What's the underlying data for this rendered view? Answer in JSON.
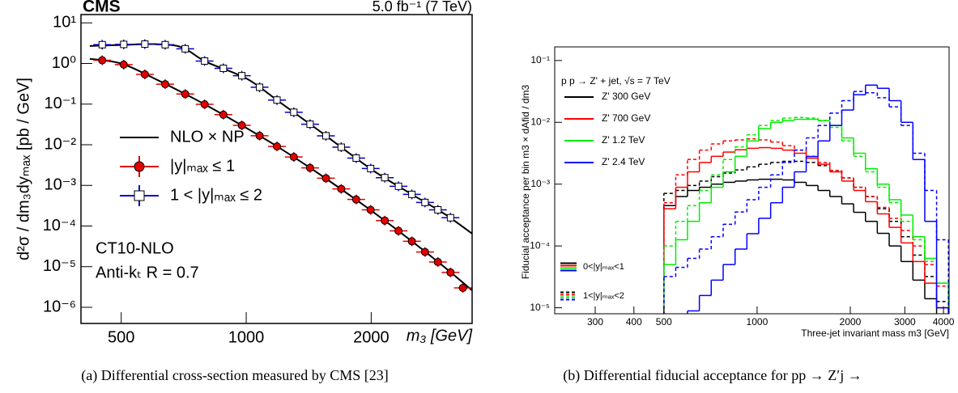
{
  "chart_data": [
    {
      "type": "scatter",
      "title": "CMS",
      "subtitle": "5.0 fb⁻¹ (7 TeV)",
      "x_label": "m₃ [GeV]",
      "y_label": "d²σ / dm₃dyₘₐₓ [pb / GeV]",
      "annotations": [
        "CT10-NLO",
        "Anti-kₜ R = 0.7"
      ],
      "xlog": true,
      "ylog": true,
      "xlim": [
        400,
        3500
      ],
      "xticks": [
        500,
        1000,
        2000
      ],
      "ylim": [
        4e-07,
        16
      ],
      "yticks": [
        {
          "value": 10,
          "label": "10¹"
        },
        {
          "value": 1,
          "label": "10⁰"
        },
        {
          "value": 0.1,
          "label": "10⁻¹"
        },
        {
          "value": 0.01,
          "label": "10⁻²"
        },
        {
          "value": 0.001,
          "label": "10⁻³"
        },
        {
          "value": 0.0001,
          "label": "10⁻⁴"
        },
        {
          "value": 1e-05,
          "label": "10⁻⁵"
        },
        {
          "value": 1e-06,
          "label": "10⁻⁶"
        }
      ],
      "curves": {
        "name": "NLO × NP",
        "color": "#000000",
        "x": [
          420,
          500,
          600,
          700,
          800,
          1000,
          1200,
          1500,
          2000,
          2500,
          3000,
          3500
        ],
        "values": [
          [
            1.3,
            1.0,
            0.43,
            0.195,
            0.095,
            0.026,
            0.0085,
            0.0019,
            0.00024,
            4.3e-05,
            9.8e-06,
            2.6e-06
          ],
          [
            2.7,
            2.85,
            3.0,
            2.5,
            1.1,
            0.43,
            0.115,
            0.022,
            0.0025,
            0.00061,
            0.0002,
            6.5e-05
          ]
        ]
      },
      "series": [
        {
          "name": "|y|ₘₐₓ ≤ 1",
          "color": "#e00000",
          "marker": "circle",
          "x": [
            450,
            507,
            570,
            638,
            713,
            794,
            881,
            976,
            1077,
            1186,
            1302,
            1425,
            1556,
            1694,
            1840,
            1994,
            2156,
            2327,
            2506,
            2695,
            2895,
            3105,
            3325
          ],
          "values": [
            1.2,
            0.94,
            0.54,
            0.31,
            0.177,
            0.099,
            0.055,
            0.03,
            0.0167,
            0.0091,
            0.005,
            0.0027,
            0.0015,
            0.00082,
            0.00045,
            0.00025,
            0.000136,
            7.6e-05,
            4.2e-05,
            2.3e-05,
            1.3e-05,
            7.2e-06,
            3e-06
          ]
        },
        {
          "name": "1 < |y|ₘₐₓ ≤ 2",
          "color": "#0000cc",
          "marker": "square",
          "x": [
            450,
            507,
            570,
            638,
            713,
            794,
            881,
            976,
            1077,
            1186,
            1302,
            1425,
            1556,
            1694,
            1840,
            1994,
            2156,
            2327,
            2506,
            2695,
            2895,
            3105
          ],
          "values": [
            2.9,
            2.95,
            3.0,
            2.9,
            2.3,
            1.15,
            0.76,
            0.5,
            0.26,
            0.126,
            0.063,
            0.032,
            0.0166,
            0.0087,
            0.0047,
            0.0026,
            0.00155,
            0.00095,
            0.0006,
            0.00038,
            0.00025,
            0.00016
          ]
        }
      ]
    },
    {
      "type": "histogram",
      "title": "p p → Z' + jet, √s = 7 TeV",
      "x_label": "Three-jet invariant mass m3 [GeV]",
      "y_label": "Fiducial acceptance per bin m3 × dAfid / dm3",
      "xlog": true,
      "ylog": true,
      "xlim": [
        222,
        4170
      ],
      "xticks": [
        300,
        400,
        500,
        1000,
        2000,
        3000,
        4000
      ],
      "ylim": [
        8e-06,
        0.166
      ],
      "yticks": [
        {
          "value": 0.1,
          "label": "10⁻¹"
        },
        {
          "value": 0.01,
          "label": "10⁻²"
        },
        {
          "value": 0.001,
          "label": "10⁻³"
        },
        {
          "value": 0.0001,
          "label": "10⁻⁴"
        },
        {
          "value": 1e-05,
          "label": "10⁻⁵"
        }
      ],
      "regions": [
        "0<|y|ₘₐₓ<1",
        "1<|y|ₘₐₓ<2"
      ],
      "line_styles": [
        "solid",
        "dashed"
      ],
      "bins": [
        500,
        546,
        596,
        651,
        711,
        777,
        849,
        927,
        1012,
        1106,
        1208,
        1319,
        1441,
        1573,
        1718,
        1877,
        2050,
        2239,
        2445,
        2671,
        2917,
        3186,
        3480,
        3800,
        4150
      ],
      "series": [
        {
          "name": "Z' 300 GeV",
          "color": "#000000",
          "values": [
            [
              0.00045,
              0.00063,
              0.00079,
              0.00089,
              0.001,
              0.00107,
              0.00112,
              0.00117,
              0.0012,
              0.0012,
              0.00117,
              0.00107,
              0.00095,
              0.00079,
              0.00063,
              0.00048,
              0.00035,
              0.00025,
              0.00016,
              0.0001,
              5.6e-05,
              2.8e-05,
              1.4e-05,
              7.9e-06
            ],
            [
              0.00071,
              0.00079,
              0.00095,
              0.00112,
              0.00132,
              0.00151,
              0.0017,
              0.0019,
              0.0021,
              0.00224,
              0.00234,
              0.00234,
              0.00224,
              0.002,
              0.00166,
              0.00126,
              0.00089,
              0.00063,
              0.0004,
              0.00025,
              0.000141,
              7.1e-05,
              3.2e-05,
              1.26e-05
            ]
          ]
        },
        {
          "name": "Z' 700 GeV",
          "color": "#ff0000",
          "values": [
            [
              0.0004,
              0.00089,
              0.00158,
              0.00224,
              0.00282,
              0.0033,
              0.0036,
              0.0038,
              0.0039,
              0.0038,
              0.00355,
              0.00316,
              0.00263,
              0.0021,
              0.00158,
              0.00112,
              0.00079,
              0.00052,
              0.00033,
              0.0002,
              0.000112,
              5.6e-05,
              2.5e-05,
              1e-05
            ],
            [
              0.0005,
              0.00141,
              0.00251,
              0.00355,
              0.00447,
              0.005,
              0.0052,
              0.0054,
              0.0052,
              0.0048,
              0.0042,
              0.00355,
              0.00282,
              0.00224,
              0.00166,
              0.00126,
              0.00089,
              0.00063,
              0.00042,
              0.00028,
              0.000178,
              0.0001,
              5e-05,
              2.24e-05
            ]
          ]
        },
        {
          "name": "Z' 1.2 TeV",
          "color": "#00ee00",
          "values": [
            [
              5e-05,
              0.000126,
              0.00025,
              0.0005,
              0.00089,
              0.00158,
              0.00282,
              0.005,
              0.0079,
              0.01,
              0.0107,
              0.0112,
              0.0112,
              0.0107,
              0.0089,
              0.0056,
              0.00316,
              0.00178,
              0.001,
              0.00056,
              0.000316,
              0.000141,
              6.3e-05,
              2.5e-05
            ],
            [
              0.0001,
              0.00025,
              0.00045,
              0.00079,
              0.00141,
              0.0025,
              0.004,
              0.0063,
              0.0089,
              0.0107,
              0.0117,
              0.012,
              0.0117,
              0.0107,
              0.0083,
              0.005,
              0.00282,
              0.00158,
              0.00089,
              0.0005,
              0.00025,
              0.000126,
              5.6e-05,
              2.5e-05
            ]
          ]
        },
        {
          "name": "Z' 2.4 TeV",
          "color": "#0000ff",
          "values": [
            [
              4e-06,
              5e-06,
              8.9e-06,
              1.58e-05,
              2.8e-05,
              5e-05,
              8.9e-05,
              0.000158,
              0.00028,
              0.0005,
              0.00089,
              0.00158,
              0.0028,
              0.005,
              0.0089,
              0.0158,
              0.028,
              0.04,
              0.0355,
              0.0224,
              0.01,
              0.0025,
              0.00025,
              1e-05
            ],
            [
              3.2e-05,
              4.5e-05,
              6.3e-05,
              8.9e-05,
              0.000141,
              0.000224,
              0.000355,
              0.00056,
              0.00089,
              0.00141,
              0.00224,
              0.00355,
              0.0056,
              0.0089,
              0.0141,
              0.0224,
              0.0316,
              0.03,
              0.025,
              0.0178,
              0.0089,
              0.00316,
              0.00079,
              0.000126
            ]
          ]
        }
      ]
    }
  ],
  "captions": [
    "(a) Differential cross-section measured by CMS [23]",
    "(b) Differential fiducial acceptance for pp → Z′j →"
  ]
}
